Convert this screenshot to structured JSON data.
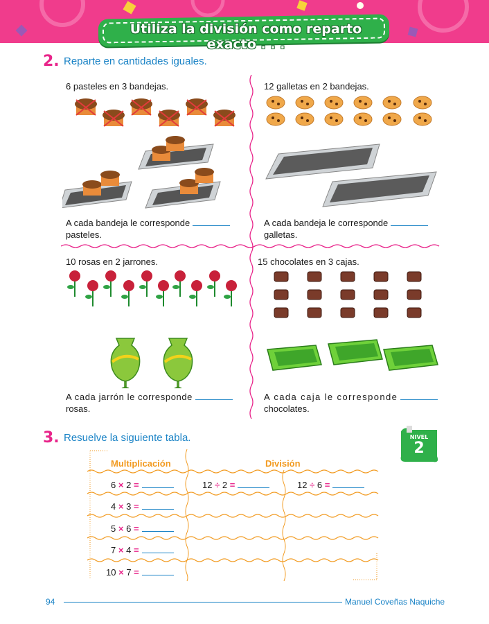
{
  "header": {
    "title": "Utiliza la división como reparto exacto . . ."
  },
  "question2": {
    "number": "2.",
    "text": "Reparte en cantidades iguales.",
    "cells": [
      {
        "prompt": "6 pasteles en 3 bandejas.",
        "answer_prefix": "A cada bandeja le corresponde",
        "answer_suffix": "pasteles."
      },
      {
        "prompt": "12 galletas en 2 bandejas.",
        "answer_prefix": "A cada bandeja le corresponde",
        "answer_suffix": "galletas."
      },
      {
        "prompt": "10 rosas en 2 jarrones.",
        "answer_prefix": "A cada jarrón le corresponde",
        "answer_suffix": "rosas."
      },
      {
        "prompt": "15 chocolates en 3 cajas.",
        "answer_prefix": "A cada caja le corresponde",
        "answer_suffix": "chocolates."
      }
    ]
  },
  "question3": {
    "number": "3.",
    "text": "Resuelve la siguiente tabla.",
    "badge": {
      "label": "NIVEL",
      "value": "2"
    },
    "headers": {
      "mult": "Multiplicación",
      "div": "División"
    },
    "rows": [
      {
        "mult": {
          "a": "6",
          "op": "×",
          "b": "2",
          "eq": "="
        },
        "div": [
          {
            "a": "12",
            "op": "÷",
            "b": "2",
            "eq": "="
          },
          {
            "a": "12",
            "op": "÷",
            "b": "6",
            "eq": "="
          }
        ]
      },
      {
        "mult": {
          "a": "4",
          "op": "×",
          "b": "3",
          "eq": "="
        }
      },
      {
        "mult": {
          "a": "5",
          "op": "×",
          "b": "6",
          "eq": "="
        }
      },
      {
        "mult": {
          "a": "7",
          "op": "×",
          "b": "4",
          "eq": "="
        }
      },
      {
        "mult": {
          "a": "10",
          "op": "×",
          "b": "7",
          "eq": "="
        }
      }
    ]
  },
  "footer": {
    "page": "94",
    "author": "Manuel Coveñas Naquiche"
  },
  "colors": {
    "pink": "#e8248a",
    "blue": "#1a83c6",
    "green": "#2fb04a",
    "orange": "#f29a1f"
  }
}
